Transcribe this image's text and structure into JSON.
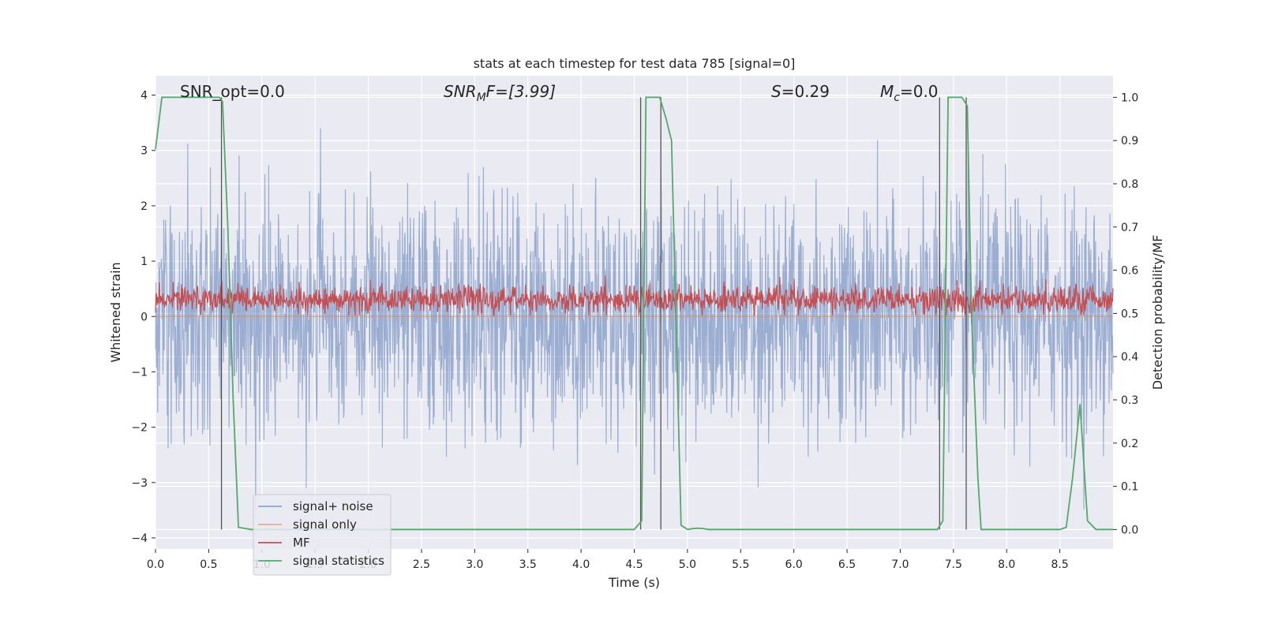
{
  "chart_data": {
    "type": "line",
    "title": "stats at each timestep for test data 785 [signal=0]",
    "xlabel": "Time (s)",
    "ylabel": "Whitened strain",
    "ylabel_right": "Detection probability/MF",
    "xlim": [
      0.0,
      9.0
    ],
    "ylim": [
      -4.2,
      4.35
    ],
    "ylim_right": [
      -0.045,
      1.05
    ],
    "x_ticks": [
      "0.0",
      "0.5",
      "1.0",
      "1.5",
      "2.0",
      "2.5",
      "3.0",
      "3.5",
      "4.0",
      "4.5",
      "5.0",
      "5.5",
      "6.0",
      "6.5",
      "7.0",
      "7.5",
      "8.0",
      "8.5"
    ],
    "y_ticks": [
      "4",
      "3",
      "2",
      "1",
      "0",
      "−1",
      "−2",
      "−3",
      "−4"
    ],
    "y_ticks_right": [
      "1.0",
      "0.9",
      "0.8",
      "0.7",
      "0.6",
      "0.5",
      "0.4",
      "0.3",
      "0.2",
      "0.1",
      "0.0"
    ],
    "annotations": {
      "snr_opt": "SNR_opt=0.0",
      "snr_mf_prefix": "SNR",
      "snr_mf_sub": "M",
      "snr_mf_suffix": "F=[3.99]",
      "s_var": "S",
      "s_val": "=0.29",
      "mc_var": "M",
      "mc_sub": "c",
      "mc_val": "=0.0"
    },
    "legend": {
      "placement": "lower-left",
      "entries": [
        "signal+ noise",
        "signal only",
        "MF",
        "signal statistics"
      ]
    },
    "series": [
      {
        "name": "signal+ noise",
        "color": "#4c72b0",
        "axis": "left",
        "description_range": [
          -3.9,
          3.95
        ]
      },
      {
        "name": "signal only",
        "color": "#dd8452",
        "axis": "left",
        "x": [
          0.0,
          9.0
        ],
        "y": [
          0.0,
          0.0
        ]
      },
      {
        "name": "MF",
        "color": "#c44e52",
        "axis": "left",
        "mean": 0.3
      },
      {
        "name": "signal statistics",
        "color": "#55a868",
        "axis": "right",
        "x": [
          0.0,
          0.06,
          0.6,
          0.63,
          0.68,
          0.73,
          0.78,
          0.9,
          4.5,
          4.57,
          4.61,
          4.74,
          4.8,
          4.85,
          4.94,
          5.0,
          5.05,
          5.1,
          5.15,
          5.2,
          7.35,
          7.4,
          7.45,
          7.58,
          7.63,
          7.67,
          7.73,
          7.76,
          8.5,
          8.56,
          8.62,
          8.69,
          8.76,
          8.84,
          9.0
        ],
        "y": [
          0.88,
          1.0,
          1.0,
          0.99,
          0.7,
          0.3,
          0.005,
          0.0,
          0.0,
          0.02,
          1.0,
          1.0,
          0.95,
          0.9,
          0.01,
          0.0,
          0.002,
          0.003,
          0.002,
          0.0,
          0.0,
          0.02,
          1.0,
          1.0,
          0.98,
          0.5,
          0.12,
          0.0,
          0.0,
          0.005,
          0.12,
          0.29,
          0.02,
          0.0,
          0.0
        ]
      }
    ],
    "vertical_markers": [
      0.62,
      4.56,
      4.75,
      7.37,
      7.62
    ]
  }
}
